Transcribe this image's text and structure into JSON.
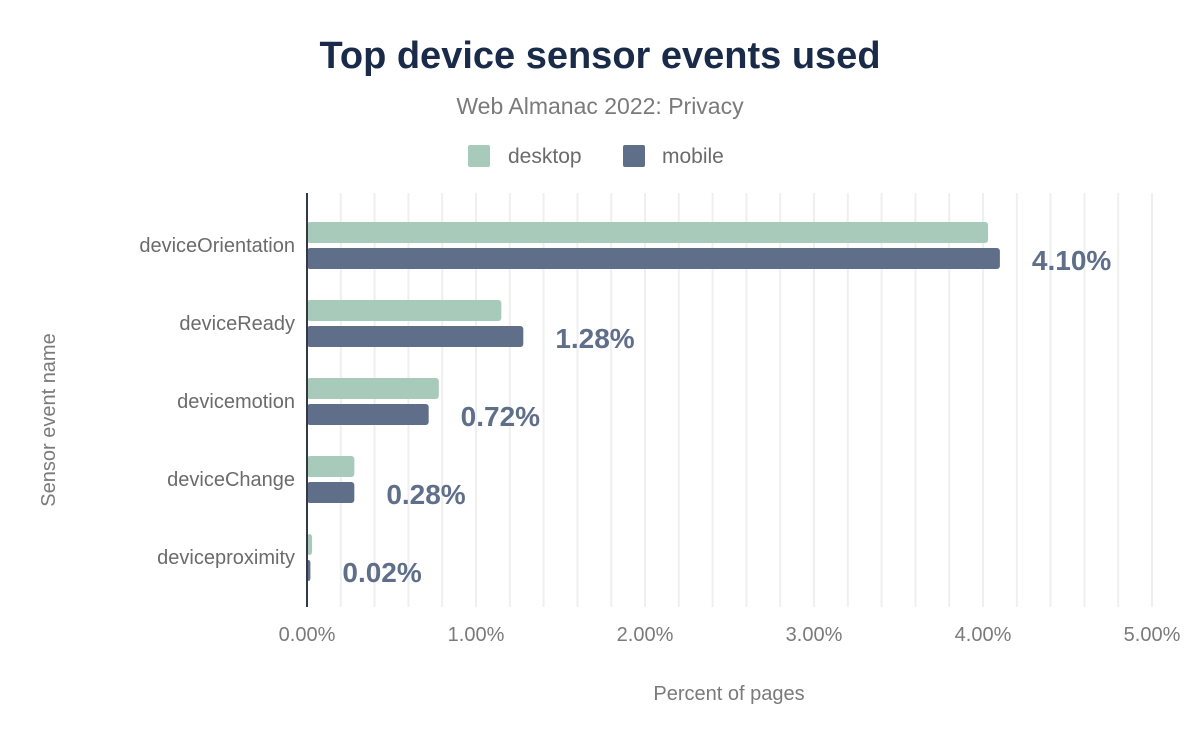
{
  "chart_data": {
    "type": "bar",
    "orientation": "horizontal",
    "title": "Top device sensor events used",
    "subtitle": "Web Almanac 2022: Privacy",
    "xlabel": "Percent of pages",
    "ylabel": "Sensor event name",
    "categories": [
      "deviceOrientation",
      "deviceReady",
      "devicemotion",
      "deviceChange",
      "deviceproximity"
    ],
    "series": [
      {
        "name": "desktop",
        "color": "#a8cabb",
        "values": [
          4.03,
          1.15,
          0.78,
          0.28,
          0.03
        ]
      },
      {
        "name": "mobile",
        "color": "#5f6f8a",
        "values": [
          4.1,
          1.28,
          0.72,
          0.28,
          0.02
        ]
      }
    ],
    "data_labels": [
      "4.10%",
      "1.28%",
      "0.72%",
      "0.28%",
      "0.02%"
    ],
    "xlim": [
      0,
      5
    ],
    "xticks": [
      0,
      1,
      2,
      3,
      4,
      5
    ],
    "xtick_labels": [
      "0.00%",
      "1.00%",
      "2.00%",
      "3.00%",
      "4.00%",
      "5.00%"
    ],
    "grid": true,
    "legend_position": "top-center",
    "title_color": "#1a2b49",
    "label_color": "#5f6f8a"
  }
}
